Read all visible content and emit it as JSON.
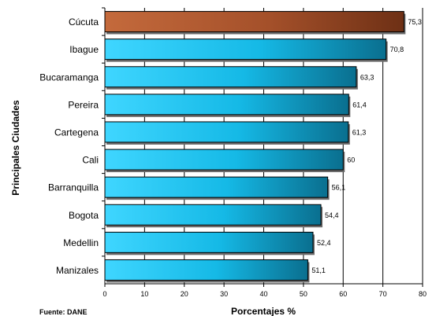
{
  "chart_data": {
    "type": "bar",
    "orientation": "horizontal",
    "categories": [
      "Cúcuta",
      "Ibague",
      "Bucaramanga",
      "Pereira",
      "Cartegena",
      "Cali",
      "Barranquilla",
      "Bogota",
      "Medellin",
      "Manizales"
    ],
    "values": [
      75.3,
      70.8,
      63.3,
      61.4,
      61.3,
      60,
      56.1,
      54.4,
      52.4,
      51.1
    ],
    "value_labels": [
      "75,3",
      "70,8",
      "63,3",
      "61,4",
      "61,3",
      "60",
      "56,1",
      "54,4",
      "52,4",
      "51,1"
    ],
    "xlabel": "Porcentajes %",
    "ylabel": "Principales Ciudades",
    "xlim": [
      0,
      80
    ],
    "xticks": [
      0,
      10,
      20,
      30,
      40,
      50,
      60,
      70,
      80
    ],
    "grid": "vertical",
    "colors": {
      "highlight": "#a0522d",
      "bar": "#1fbfe8",
      "bar_dark": "#0a6f8f",
      "grid": "#000000"
    },
    "highlight_index": 0
  },
  "source_text": "Fuente: DANE"
}
